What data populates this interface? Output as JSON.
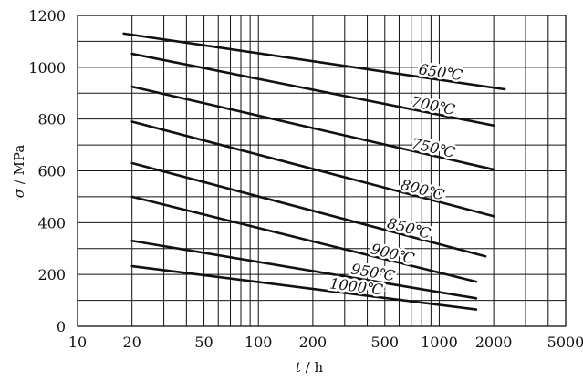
{
  "chart_data": {
    "type": "line",
    "title": "",
    "xlabel": {
      "var": "t",
      "unit": "h"
    },
    "ylabel": {
      "var": "σ",
      "unit": "MPa"
    },
    "x_scale": "log",
    "xlim": [
      10,
      5000
    ],
    "ylim": [
      0,
      1200
    ],
    "x_ticks": [
      10,
      20,
      50,
      100,
      200,
      500,
      1000,
      2000,
      5000
    ],
    "x_minor_gridlines": [
      30,
      40,
      60,
      70,
      80,
      90,
      300,
      400,
      600,
      700,
      800,
      900,
      3000,
      4000
    ],
    "y_ticks": [
      0,
      200,
      400,
      600,
      800,
      1000,
      1200
    ],
    "y_minor_gridlines": [
      100,
      300,
      500,
      700,
      900,
      1100
    ],
    "grid": true,
    "series": [
      {
        "name": "650°C",
        "label": "650℃",
        "x": [
          18,
          2300
        ],
        "y": [
          1130,
          915
        ]
      },
      {
        "name": "700°C",
        "label": "700℃",
        "x": [
          20,
          2000
        ],
        "y": [
          1052,
          775
        ]
      },
      {
        "name": "750°C",
        "label": "750℃",
        "x": [
          20,
          2000
        ],
        "y": [
          925,
          605
        ]
      },
      {
        "name": "800°C",
        "label": "800℃",
        "x": [
          20,
          2000
        ],
        "y": [
          790,
          425
        ]
      },
      {
        "name": "850°C",
        "label": "850℃",
        "x": [
          20,
          1800
        ],
        "y": [
          630,
          270
        ]
      },
      {
        "name": "900°C",
        "label": "900℃",
        "x": [
          20,
          1600
        ],
        "y": [
          500,
          172
        ]
      },
      {
        "name": "950°C",
        "label": "950℃",
        "x": [
          20,
          1600
        ],
        "y": [
          330,
          108
        ]
      },
      {
        "name": "1000°C",
        "label": "1000℃",
        "x": [
          20,
          1600
        ],
        "y": [
          232,
          65
        ]
      }
    ]
  }
}
